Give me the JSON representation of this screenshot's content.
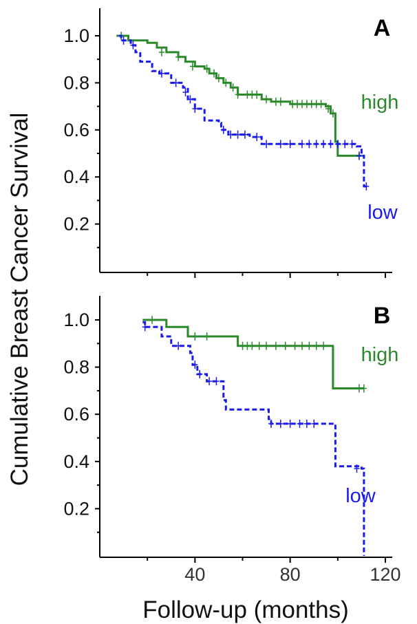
{
  "chart_data": {
    "type": "line",
    "ylabel": "Cumulative Breast Cancer Survival",
    "xlabel": "Follow-up (months)",
    "xlim": [
      0,
      120
    ],
    "x_ticks": [
      40,
      80,
      120
    ],
    "x_tick_labels": [
      "40",
      "80",
      "120"
    ],
    "ylim": [
      0,
      1.1
    ],
    "y_ticks": [
      0.2,
      0.4,
      0.6,
      0.8,
      1.0
    ],
    "y_tick_labels": [
      "0.2",
      "0.4",
      "0.6",
      "0.8",
      "1.0"
    ],
    "colors": {
      "high": "#2a8a2a",
      "low": "#1a1aee"
    },
    "panels": [
      {
        "label": "A",
        "series": [
          {
            "name": "high",
            "style": "solid",
            "steps": [
              [
                7,
                1.0
              ],
              [
                12,
                0.98
              ],
              [
                20,
                0.97
              ],
              [
                24,
                0.95
              ],
              [
                28,
                0.93
              ],
              [
                33,
                0.91
              ],
              [
                36,
                0.89
              ],
              [
                40,
                0.87
              ],
              [
                44,
                0.86
              ],
              [
                46,
                0.84
              ],
              [
                49,
                0.82
              ],
              [
                52,
                0.8
              ],
              [
                55,
                0.78
              ],
              [
                58,
                0.75
              ],
              [
                68,
                0.73
              ],
              [
                72,
                0.72
              ],
              [
                80,
                0.71
              ],
              [
                95,
                0.7
              ],
              [
                97,
                0.67
              ],
              [
                99,
                0.55
              ],
              [
                100,
                0.49
              ],
              [
                110,
                0.49
              ]
            ],
            "censored": [
              [
                9,
                1.0
              ],
              [
                26,
                0.93
              ],
              [
                33,
                0.91
              ],
              [
                39,
                0.87
              ],
              [
                45,
                0.86
              ],
              [
                48,
                0.84
              ],
              [
                50,
                0.82
              ],
              [
                53,
                0.8
              ],
              [
                56,
                0.78
              ],
              [
                58,
                0.75
              ],
              [
                62,
                0.75
              ],
              [
                64,
                0.75
              ],
              [
                66,
                0.75
              ],
              [
                70,
                0.73
              ],
              [
                74,
                0.72
              ],
              [
                76,
                0.72
              ],
              [
                81,
                0.71
              ],
              [
                83,
                0.71
              ],
              [
                85,
                0.71
              ],
              [
                87,
                0.71
              ],
              [
                89,
                0.71
              ],
              [
                91,
                0.71
              ],
              [
                93,
                0.71
              ],
              [
                96,
                0.69
              ],
              [
                98,
                0.67
              ],
              [
                109,
                0.49
              ]
            ]
          },
          {
            "name": "low",
            "style": "dashed",
            "steps": [
              [
                8,
                1.0
              ],
              [
                9,
                0.98
              ],
              [
                13,
                0.96
              ],
              [
                15,
                0.93
              ],
              [
                17,
                0.89
              ],
              [
                22,
                0.85
              ],
              [
                25,
                0.84
              ],
              [
                30,
                0.8
              ],
              [
                35,
                0.78
              ],
              [
                37,
                0.73
              ],
              [
                40,
                0.69
              ],
              [
                44,
                0.64
              ],
              [
                50,
                0.63
              ],
              [
                51,
                0.6
              ],
              [
                54,
                0.58
              ],
              [
                63,
                0.57
              ],
              [
                68,
                0.54
              ],
              [
                108,
                0.53
              ],
              [
                110,
                0.49
              ],
              [
                111,
                0.36
              ],
              [
                113,
                0.36
              ]
            ],
            "censored": [
              [
                10,
                0.98
              ],
              [
                14,
                0.96
              ],
              [
                26,
                0.84
              ],
              [
                32,
                0.8
              ],
              [
                36,
                0.76
              ],
              [
                38,
                0.73
              ],
              [
                40,
                0.69
              ],
              [
                52,
                0.6
              ],
              [
                55,
                0.58
              ],
              [
                58,
                0.58
              ],
              [
                61,
                0.58
              ],
              [
                66,
                0.57
              ],
              [
                70,
                0.54
              ],
              [
                76,
                0.54
              ],
              [
                80,
                0.54
              ],
              [
                85,
                0.54
              ],
              [
                88,
                0.54
              ],
              [
                91,
                0.54
              ],
              [
                94,
                0.54
              ],
              [
                97,
                0.54
              ],
              [
                100,
                0.54
              ],
              [
                103,
                0.54
              ],
              [
                106,
                0.54
              ],
              [
                109,
                0.49
              ],
              [
                112,
                0.36
              ]
            ]
          }
        ]
      },
      {
        "label": "B",
        "series": [
          {
            "name": "high",
            "style": "solid",
            "steps": [
              [
                18,
                1.0
              ],
              [
                28,
                0.97
              ],
              [
                37,
                0.93
              ],
              [
                58,
                0.89
              ],
              [
                98,
                0.71
              ],
              [
                111,
                0.71
              ]
            ],
            "censored": [
              [
                22,
                1.0
              ],
              [
                40,
                0.93
              ],
              [
                45,
                0.93
              ],
              [
                60,
                0.89
              ],
              [
                62,
                0.89
              ],
              [
                64,
                0.89
              ],
              [
                67,
                0.89
              ],
              [
                70,
                0.89
              ],
              [
                74,
                0.89
              ],
              [
                78,
                0.89
              ],
              [
                82,
                0.89
              ],
              [
                85,
                0.89
              ],
              [
                88,
                0.89
              ],
              [
                91,
                0.89
              ],
              [
                94,
                0.89
              ],
              [
                109,
                0.71
              ],
              [
                111,
                0.71
              ]
            ]
          },
          {
            "name": "low",
            "style": "dashed",
            "steps": [
              [
                18,
                0.99
              ],
              [
                19,
                0.97
              ],
              [
                26,
                0.93
              ],
              [
                30,
                0.89
              ],
              [
                38,
                0.86
              ],
              [
                39,
                0.81
              ],
              [
                41,
                0.77
              ],
              [
                45,
                0.74
              ],
              [
                52,
                0.66
              ],
              [
                53,
                0.62
              ],
              [
                71,
                0.58
              ],
              [
                72,
                0.56
              ],
              [
                99,
                0.38
              ],
              [
                110,
                0.37
              ],
              [
                111,
                0.0
              ]
            ],
            "censored": [
              [
                19,
                0.97
              ],
              [
                33,
                0.89
              ],
              [
                40,
                0.81
              ],
              [
                42,
                0.77
              ],
              [
                46,
                0.74
              ],
              [
                49,
                0.74
              ],
              [
                72,
                0.56
              ],
              [
                76,
                0.56
              ],
              [
                80,
                0.56
              ],
              [
                84,
                0.56
              ],
              [
                87,
                0.56
              ],
              [
                90,
                0.56
              ],
              [
                108,
                0.37
              ]
            ]
          }
        ]
      }
    ]
  }
}
